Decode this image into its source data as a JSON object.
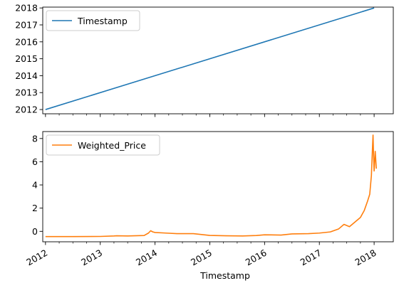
{
  "chart_data": [
    {
      "type": "line",
      "title": "",
      "xlabel": "",
      "ylabel": "",
      "x_ticks": [
        "2012",
        "2013",
        "2014",
        "2015",
        "2016",
        "2017",
        "2018"
      ],
      "y_ticks": [
        "2012",
        "2013",
        "2014",
        "2015",
        "2016",
        "2017",
        "2018"
      ],
      "xlim": [
        2011.95,
        2018.35
      ],
      "ylim": [
        2011.75,
        2018.05
      ],
      "grid": false,
      "legend": "top-left",
      "series": [
        {
          "name": "Timestamp",
          "color": "#1f77b4",
          "x": [
            2012.0,
            2018.0
          ],
          "y": [
            2012.0,
            2018.0
          ]
        }
      ]
    },
    {
      "type": "line",
      "title": "",
      "xlabel": "Timestamp",
      "ylabel": "",
      "x_ticks": [
        "2012",
        "2013",
        "2014",
        "2015",
        "2016",
        "2017",
        "2018"
      ],
      "y_ticks": [
        "0",
        "2",
        "4",
        "6",
        "8"
      ],
      "xlim": [
        2011.95,
        2018.35
      ],
      "ylim": [
        -0.9,
        8.6
      ],
      "grid": false,
      "legend": "top-left",
      "series": [
        {
          "name": "Weighted_Price",
          "color": "#ff7f0e",
          "x": [
            2012.0,
            2012.5,
            2013.0,
            2013.25,
            2013.3,
            2013.5,
            2013.8,
            2013.88,
            2013.92,
            2013.96,
            2014.0,
            2014.2,
            2014.4,
            2014.7,
            2015.0,
            2015.3,
            2015.6,
            2015.85,
            2016.0,
            2016.3,
            2016.5,
            2016.8,
            2017.0,
            2017.2,
            2017.35,
            2017.45,
            2017.55,
            2017.65,
            2017.75,
            2017.82,
            2017.88,
            2017.92,
            2017.95,
            2017.97,
            2017.98,
            2017.99,
            2018.0,
            2018.02,
            2018.04
          ],
          "y": [
            -0.45,
            -0.45,
            -0.44,
            -0.4,
            -0.38,
            -0.4,
            -0.36,
            -0.15,
            0.05,
            -0.05,
            -0.1,
            -0.15,
            -0.2,
            -0.2,
            -0.35,
            -0.38,
            -0.4,
            -0.36,
            -0.3,
            -0.32,
            -0.22,
            -0.2,
            -0.15,
            -0.05,
            0.2,
            0.6,
            0.4,
            0.8,
            1.2,
            1.8,
            2.6,
            3.2,
            4.8,
            7.2,
            8.3,
            6.5,
            5.2,
            6.9,
            5.4
          ]
        }
      ]
    }
  ]
}
